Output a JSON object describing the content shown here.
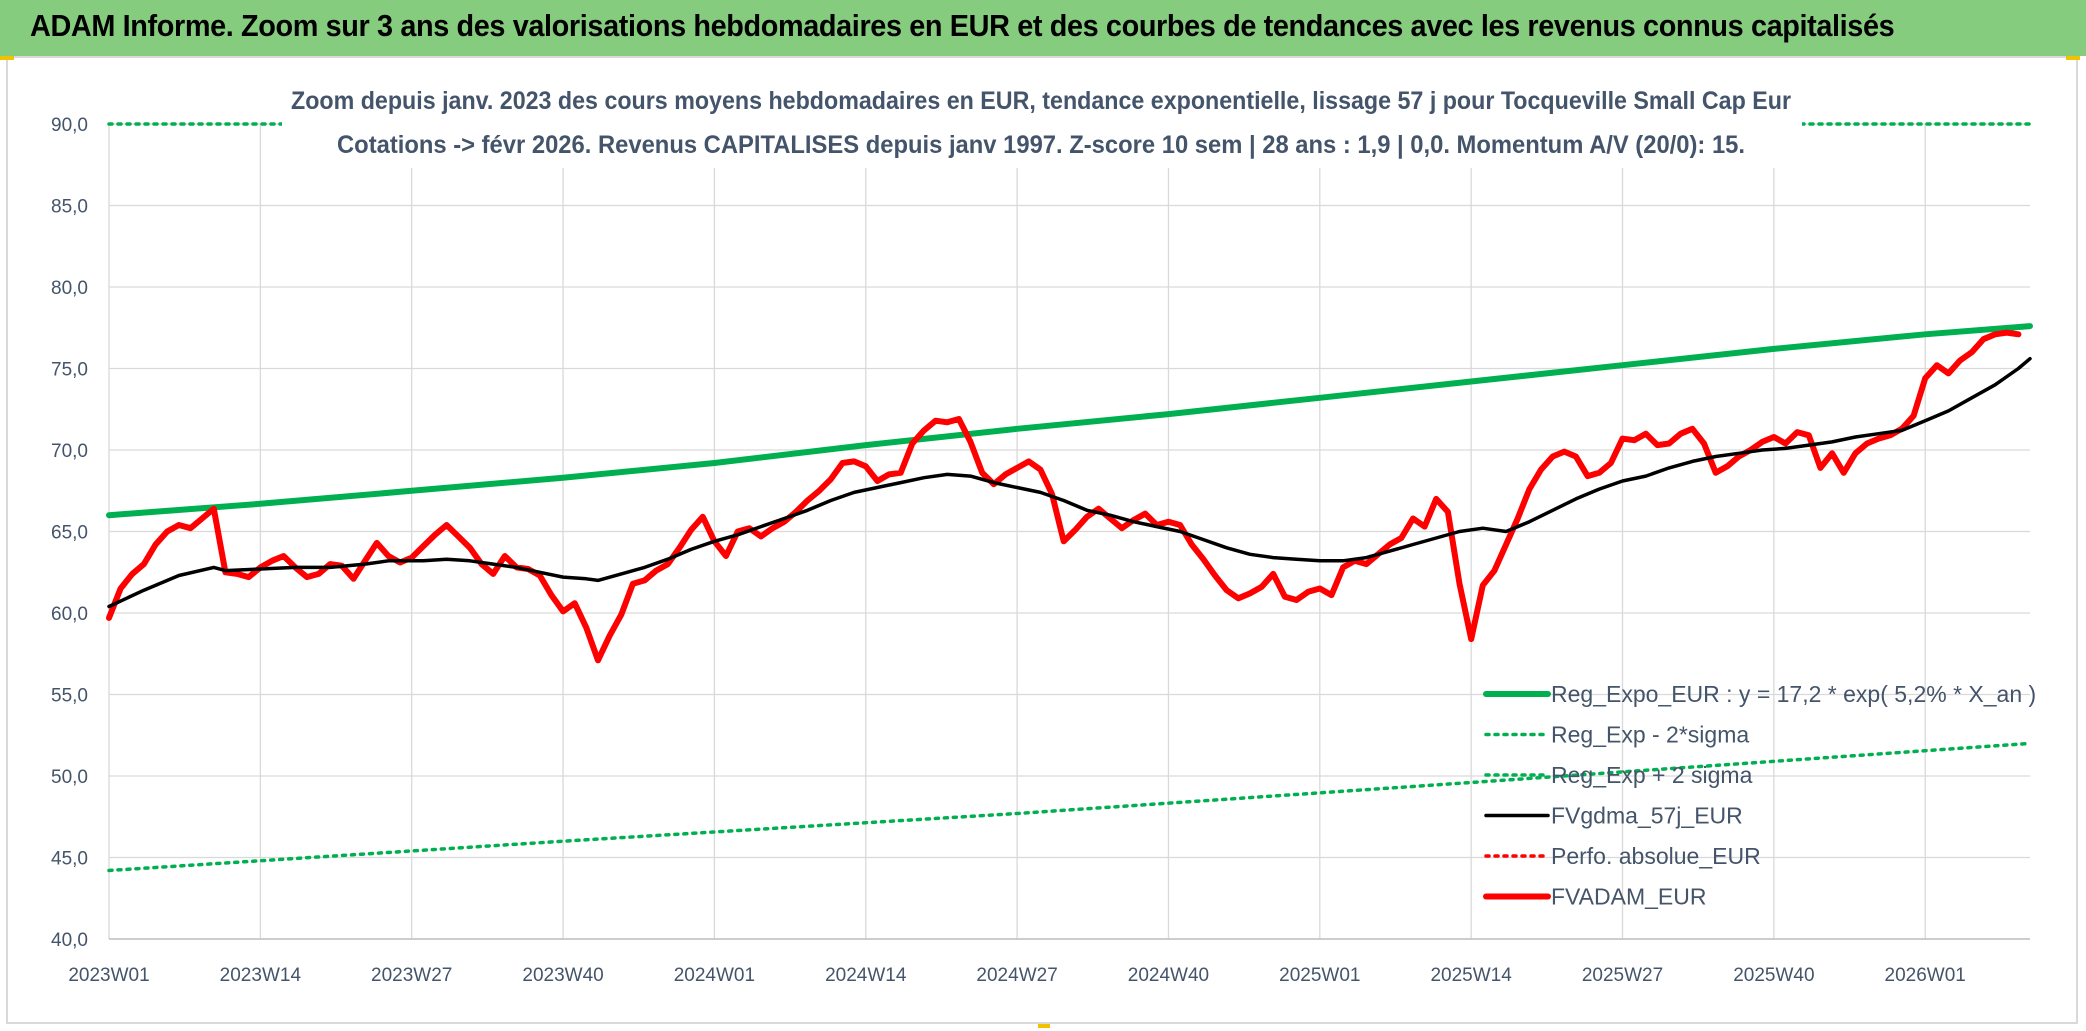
{
  "banner": {
    "title": "ADAM Informe. Zoom sur 3 ans des valorisations hebdomadaires en EUR et des courbes de tendances avec les revenus connus capitalisés"
  },
  "colors": {
    "banner_bg": "#86cc7e",
    "reg_expo": "#00b050",
    "fvgdma": "#000000",
    "fvadam": "#ff0000",
    "text": "#44546a",
    "grid": "#d9d9d9"
  },
  "chart_data": {
    "type": "line",
    "title_line1": "Zoom depuis janv. 2023 des cours moyens hebdomadaires en EUR, tendance exponentielle, lissage 57 j pour Tocqueville Small Cap Eur",
    "title_line2": "Cotations -> févr 2026. Revenus CAPITALISES depuis janv 1997. Z-score 10 sem | 28 ans : 1,9 | 0,0. Momentum A/V (20/0): 15.",
    "ylim": [
      40,
      90
    ],
    "yticks": [
      "40,0",
      "45,0",
      "50,0",
      "55,0",
      "60,0",
      "65,0",
      "70,0",
      "75,0",
      "80,0",
      "85,0",
      "90,0"
    ],
    "x_ticks": [
      "2023W01",
      "2023W14",
      "2023W27",
      "2023W40",
      "2024W01",
      "2024W14",
      "2024W27",
      "2024W40",
      "2025W01",
      "2025W14",
      "2025W27",
      "2025W40",
      "2026W01"
    ],
    "n_weeks": 166,
    "grid": true,
    "legend_position": "bottom-right",
    "series": [
      {
        "name": "Reg_Expo_EUR : y = 17,2 * exp( 5,2% *  X_an )",
        "style": "solid-thick",
        "color": "#00b050",
        "points": [
          [
            0,
            66.0
          ],
          [
            13,
            66.7
          ],
          [
            26,
            67.5
          ],
          [
            39,
            68.3
          ],
          [
            52,
            69.2
          ],
          [
            65,
            70.3
          ],
          [
            78,
            71.3
          ],
          [
            91,
            72.2
          ],
          [
            104,
            73.2
          ],
          [
            117,
            74.2
          ],
          [
            130,
            75.2
          ],
          [
            143,
            76.2
          ],
          [
            156,
            77.1
          ],
          [
            165,
            77.6
          ]
        ]
      },
      {
        "name": "Reg_Exp - 2*sigma",
        "style": "dotted",
        "color": "#00b050",
        "points": [
          [
            0,
            44.2
          ],
          [
            39,
            46.0
          ],
          [
            78,
            47.7
          ],
          [
            117,
            49.6
          ],
          [
            165,
            52.0
          ]
        ]
      },
      {
        "name": "Reg_Exp + 2 sigma",
        "style": "dotted",
        "color": "#00b050",
        "points": [
          [
            0,
            90.0
          ],
          [
            165,
            90.0
          ]
        ]
      },
      {
        "name": "FVgdma_57j_EUR",
        "style": "solid",
        "color": "#000000",
        "points": [
          [
            0,
            60.4
          ],
          [
            3,
            61.4
          ],
          [
            6,
            62.3
          ],
          [
            9,
            62.8
          ],
          [
            10,
            62.6
          ],
          [
            13,
            62.7
          ],
          [
            16,
            62.8
          ],
          [
            19,
            62.8
          ],
          [
            22,
            63.0
          ],
          [
            24,
            63.2
          ],
          [
            27,
            63.2
          ],
          [
            29,
            63.3
          ],
          [
            31,
            63.2
          ],
          [
            33,
            63.0
          ],
          [
            35,
            62.8
          ],
          [
            37,
            62.5
          ],
          [
            39,
            62.2
          ],
          [
            41,
            62.1
          ],
          [
            42,
            62.0
          ],
          [
            44,
            62.4
          ],
          [
            46,
            62.8
          ],
          [
            48,
            63.3
          ],
          [
            50,
            63.9
          ],
          [
            52,
            64.4
          ],
          [
            54,
            64.8
          ],
          [
            56,
            65.3
          ],
          [
            58,
            65.8
          ],
          [
            60,
            66.3
          ],
          [
            62,
            66.9
          ],
          [
            64,
            67.4
          ],
          [
            66,
            67.7
          ],
          [
            68,
            68.0
          ],
          [
            70,
            68.3
          ],
          [
            72,
            68.5
          ],
          [
            74,
            68.4
          ],
          [
            76,
            68.0
          ],
          [
            78,
            67.7
          ],
          [
            80,
            67.4
          ],
          [
            82,
            66.9
          ],
          [
            84,
            66.3
          ],
          [
            86,
            66.0
          ],
          [
            88,
            65.6
          ],
          [
            90,
            65.3
          ],
          [
            92,
            65.0
          ],
          [
            94,
            64.5
          ],
          [
            96,
            64.0
          ],
          [
            98,
            63.6
          ],
          [
            100,
            63.4
          ],
          [
            102,
            63.3
          ],
          [
            104,
            63.2
          ],
          [
            106,
            63.2
          ],
          [
            108,
            63.4
          ],
          [
            110,
            63.8
          ],
          [
            112,
            64.2
          ],
          [
            114,
            64.6
          ],
          [
            116,
            65.0
          ],
          [
            118,
            65.2
          ],
          [
            120,
            65.0
          ],
          [
            122,
            65.6
          ],
          [
            124,
            66.3
          ],
          [
            126,
            67.0
          ],
          [
            128,
            67.6
          ],
          [
            130,
            68.1
          ],
          [
            132,
            68.4
          ],
          [
            134,
            68.9
          ],
          [
            136,
            69.3
          ],
          [
            138,
            69.6
          ],
          [
            140,
            69.8
          ],
          [
            142,
            70.0
          ],
          [
            144,
            70.1
          ],
          [
            146,
            70.3
          ],
          [
            148,
            70.5
          ],
          [
            150,
            70.8
          ],
          [
            152,
            71.0
          ],
          [
            154,
            71.2
          ],
          [
            156,
            71.8
          ],
          [
            158,
            72.4
          ],
          [
            160,
            73.2
          ],
          [
            162,
            74.0
          ],
          [
            164,
            75.0
          ],
          [
            165,
            75.6
          ]
        ]
      },
      {
        "name": "Perfo. absolue_EUR",
        "style": "dotted",
        "color": "#ff0000",
        "points": []
      },
      {
        "name": "FVADAM_EUR",
        "style": "solid-thick",
        "color": "#ff0000",
        "points": [
          [
            0,
            59.7
          ],
          [
            1,
            61.5
          ],
          [
            2,
            62.4
          ],
          [
            3,
            63.0
          ],
          [
            4,
            64.2
          ],
          [
            5,
            65.0
          ],
          [
            6,
            65.4
          ],
          [
            7,
            65.2
          ],
          [
            8,
            65.8
          ],
          [
            9,
            66.4
          ],
          [
            10,
            62.5
          ],
          [
            11,
            62.4
          ],
          [
            12,
            62.2
          ],
          [
            13,
            62.8
          ],
          [
            14,
            63.2
          ],
          [
            15,
            63.5
          ],
          [
            16,
            62.8
          ],
          [
            17,
            62.2
          ],
          [
            18,
            62.4
          ],
          [
            19,
            63.0
          ],
          [
            20,
            62.9
          ],
          [
            21,
            62.1
          ],
          [
            22,
            63.2
          ],
          [
            23,
            64.3
          ],
          [
            24,
            63.5
          ],
          [
            25,
            63.1
          ],
          [
            26,
            63.4
          ],
          [
            27,
            64.1
          ],
          [
            28,
            64.8
          ],
          [
            29,
            65.4
          ],
          [
            30,
            64.7
          ],
          [
            31,
            64.0
          ],
          [
            32,
            63.0
          ],
          [
            33,
            62.4
          ],
          [
            34,
            63.5
          ],
          [
            35,
            62.8
          ],
          [
            36,
            62.7
          ],
          [
            37,
            62.3
          ],
          [
            38,
            61.1
          ],
          [
            39,
            60.1
          ],
          [
            40,
            60.6
          ],
          [
            41,
            59.1
          ],
          [
            42,
            57.1
          ],
          [
            43,
            58.6
          ],
          [
            44,
            59.9
          ],
          [
            45,
            61.8
          ],
          [
            46,
            62.0
          ],
          [
            47,
            62.6
          ],
          [
            48,
            63.0
          ],
          [
            49,
            64.0
          ],
          [
            50,
            65.1
          ],
          [
            51,
            65.9
          ],
          [
            52,
            64.4
          ],
          [
            53,
            63.5
          ],
          [
            54,
            65.0
          ],
          [
            55,
            65.2
          ],
          [
            56,
            64.7
          ],
          [
            57,
            65.2
          ],
          [
            58,
            65.6
          ],
          [
            59,
            66.2
          ],
          [
            60,
            66.9
          ],
          [
            61,
            67.5
          ],
          [
            62,
            68.2
          ],
          [
            63,
            69.2
          ],
          [
            64,
            69.3
          ],
          [
            65,
            69.0
          ],
          [
            66,
            68.1
          ],
          [
            67,
            68.5
          ],
          [
            68,
            68.6
          ],
          [
            69,
            70.4
          ],
          [
            70,
            71.2
          ],
          [
            71,
            71.8
          ],
          [
            72,
            71.7
          ],
          [
            73,
            71.9
          ],
          [
            74,
            70.5
          ],
          [
            75,
            68.6
          ],
          [
            76,
            67.9
          ],
          [
            77,
            68.5
          ],
          [
            78,
            68.9
          ],
          [
            79,
            69.3
          ],
          [
            80,
            68.8
          ],
          [
            81,
            67.3
          ],
          [
            82,
            64.4
          ],
          [
            83,
            65.1
          ],
          [
            84,
            65.9
          ],
          [
            85,
            66.4
          ],
          [
            86,
            65.8
          ],
          [
            87,
            65.2
          ],
          [
            88,
            65.7
          ],
          [
            89,
            66.1
          ],
          [
            90,
            65.4
          ],
          [
            91,
            65.6
          ],
          [
            92,
            65.4
          ],
          [
            93,
            64.2
          ],
          [
            94,
            63.3
          ],
          [
            95,
            62.3
          ],
          [
            96,
            61.4
          ],
          [
            97,
            60.9
          ],
          [
            98,
            61.2
          ],
          [
            99,
            61.6
          ],
          [
            100,
            62.4
          ],
          [
            101,
            61.0
          ],
          [
            102,
            60.8
          ],
          [
            103,
            61.3
          ],
          [
            104,
            61.5
          ],
          [
            105,
            61.1
          ],
          [
            106,
            62.8
          ],
          [
            107,
            63.2
          ],
          [
            108,
            63.0
          ],
          [
            109,
            63.6
          ],
          [
            110,
            64.2
          ],
          [
            111,
            64.6
          ],
          [
            112,
            65.8
          ],
          [
            113,
            65.3
          ],
          [
            114,
            67.0
          ],
          [
            115,
            66.2
          ],
          [
            116,
            61.8
          ],
          [
            117,
            58.4
          ],
          [
            118,
            61.7
          ],
          [
            119,
            62.6
          ],
          [
            120,
            64.2
          ],
          [
            121,
            65.8
          ],
          [
            122,
            67.6
          ],
          [
            123,
            68.8
          ],
          [
            124,
            69.6
          ],
          [
            125,
            69.9
          ],
          [
            126,
            69.6
          ],
          [
            127,
            68.4
          ],
          [
            128,
            68.6
          ],
          [
            129,
            69.2
          ],
          [
            130,
            70.7
          ],
          [
            131,
            70.6
          ],
          [
            132,
            71.0
          ],
          [
            133,
            70.3
          ],
          [
            134,
            70.4
          ],
          [
            135,
            71.0
          ],
          [
            136,
            71.3
          ],
          [
            137,
            70.4
          ],
          [
            138,
            68.6
          ],
          [
            139,
            69.0
          ],
          [
            140,
            69.6
          ],
          [
            141,
            70.0
          ],
          [
            142,
            70.5
          ],
          [
            143,
            70.8
          ],
          [
            144,
            70.4
          ],
          [
            145,
            71.1
          ],
          [
            146,
            70.9
          ],
          [
            147,
            68.9
          ],
          [
            148,
            69.8
          ],
          [
            149,
            68.6
          ],
          [
            150,
            69.8
          ],
          [
            151,
            70.4
          ],
          [
            152,
            70.7
          ],
          [
            153,
            70.9
          ],
          [
            154,
            71.3
          ],
          [
            155,
            72.1
          ],
          [
            156,
            74.4
          ],
          [
            157,
            75.2
          ],
          [
            158,
            74.7
          ],
          [
            159,
            75.5
          ],
          [
            160,
            76.0
          ],
          [
            161,
            76.8
          ],
          [
            162,
            77.1
          ],
          [
            163,
            77.2
          ],
          [
            164,
            77.1
          ]
        ]
      }
    ]
  }
}
